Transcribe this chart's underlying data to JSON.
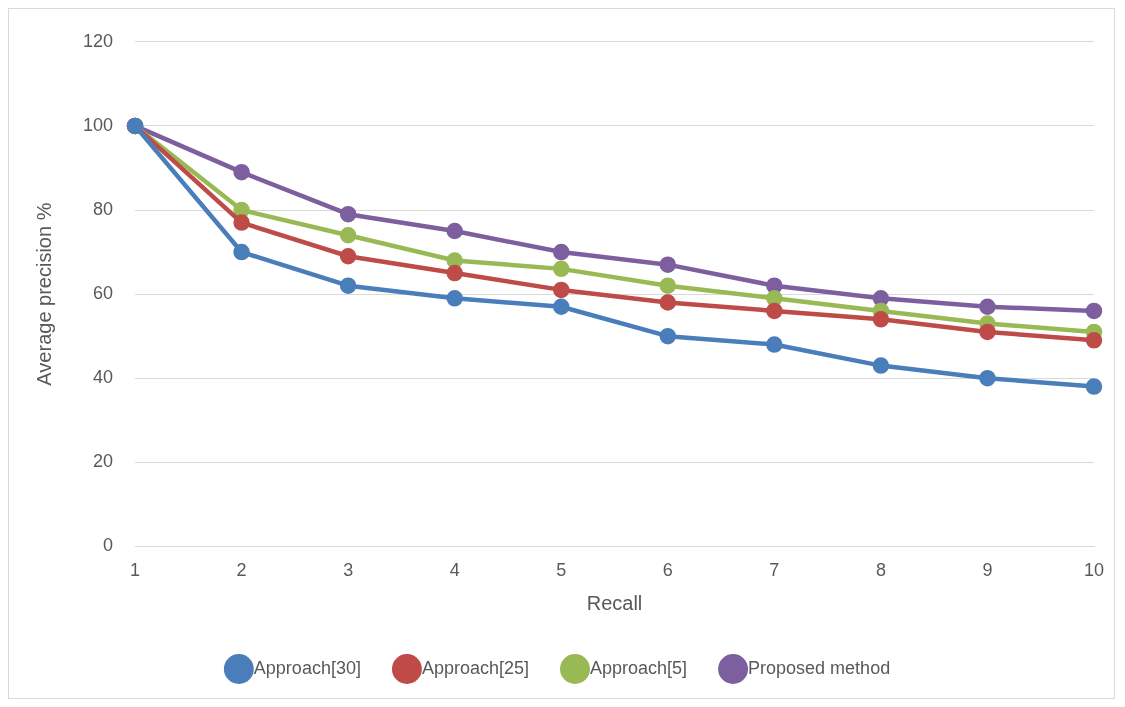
{
  "chart_data": {
    "type": "line",
    "xlabel": "Recall",
    "ylabel": "Average precision %",
    "categories": [
      "1",
      "2",
      "3",
      "4",
      "5",
      "6",
      "7",
      "8",
      "9",
      "10"
    ],
    "series": [
      {
        "name": "Approach[30]",
        "color": "#4a7ebb",
        "values": [
          100,
          70,
          62,
          59,
          57,
          50,
          48,
          43,
          40,
          38
        ]
      },
      {
        "name": "Approach[25]",
        "color": "#be4b48",
        "values": [
          100,
          77,
          69,
          65,
          61,
          58,
          56,
          54,
          51,
          49
        ]
      },
      {
        "name": "Approach[5]",
        "color": "#98b954",
        "values": [
          100,
          80,
          74,
          68,
          66,
          62,
          59,
          56,
          53,
          51
        ]
      },
      {
        "name": "Proposed method",
        "color": "#7d5fa0",
        "values": [
          100,
          89,
          79,
          75,
          70,
          67,
          62,
          59,
          57,
          56
        ]
      }
    ],
    "ylim": [
      0,
      120
    ],
    "yticks": [
      0,
      20,
      40,
      60,
      80,
      100,
      120
    ],
    "grid": "y",
    "legend": "bottom",
    "marker": "circle",
    "line_style": "solid"
  }
}
